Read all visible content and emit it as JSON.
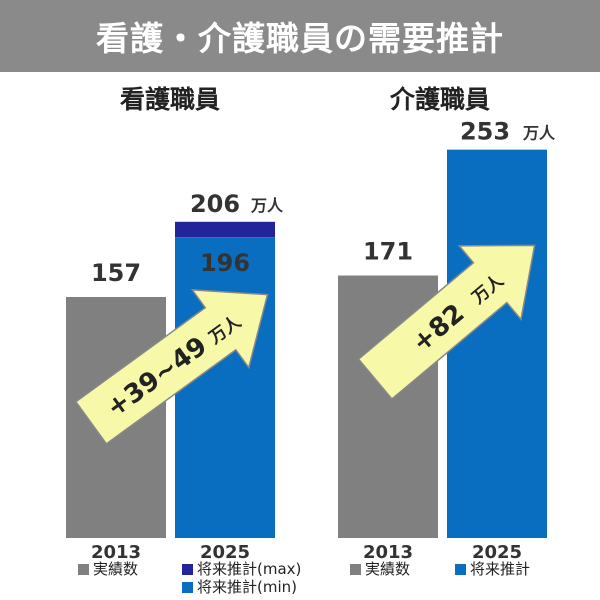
{
  "title": "看護・介護職員の需要推計",
  "colors": {
    "header_bg": "#8a8a8a",
    "actual": "#808080",
    "forecast": "#0a6ec0",
    "forecast_max": "#23239a",
    "arrow_fill": "#f7f9a8",
    "arrow_stroke": "#888888"
  },
  "chart_data": [
    {
      "type": "bar",
      "title": "看護職員",
      "categories": [
        "2013",
        "2025"
      ],
      "unit": "万人",
      "values": [
        {
          "category": "2013",
          "value": 157,
          "label": "157",
          "series": "実績数"
        },
        {
          "category": "2025",
          "value": 196,
          "label": "196",
          "series": "将来推計(min)",
          "max_value": 206,
          "max_label": "206",
          "max_series": "将来推計(max)"
        }
      ],
      "arrow_label": "+39~49",
      "arrow_unit": "万人",
      "legend": [
        {
          "label": "実績数",
          "color": "#808080"
        },
        {
          "label": "将来推計(max)",
          "color": "#23239a"
        },
        {
          "label": "将来推計(min)",
          "color": "#0a6ec0"
        }
      ]
    },
    {
      "type": "bar",
      "title": "介護職員",
      "categories": [
        "2013",
        "2025"
      ],
      "unit": "万人",
      "values": [
        {
          "category": "2013",
          "value": 171,
          "label": "171",
          "series": "実績数"
        },
        {
          "category": "2025",
          "value": 253,
          "label": "253",
          "series": "将来推計"
        }
      ],
      "arrow_label": "+82",
      "arrow_unit": "万人",
      "legend": [
        {
          "label": "実績数",
          "color": "#808080"
        },
        {
          "label": "将来推計",
          "color": "#0a6ec0"
        }
      ]
    }
  ]
}
